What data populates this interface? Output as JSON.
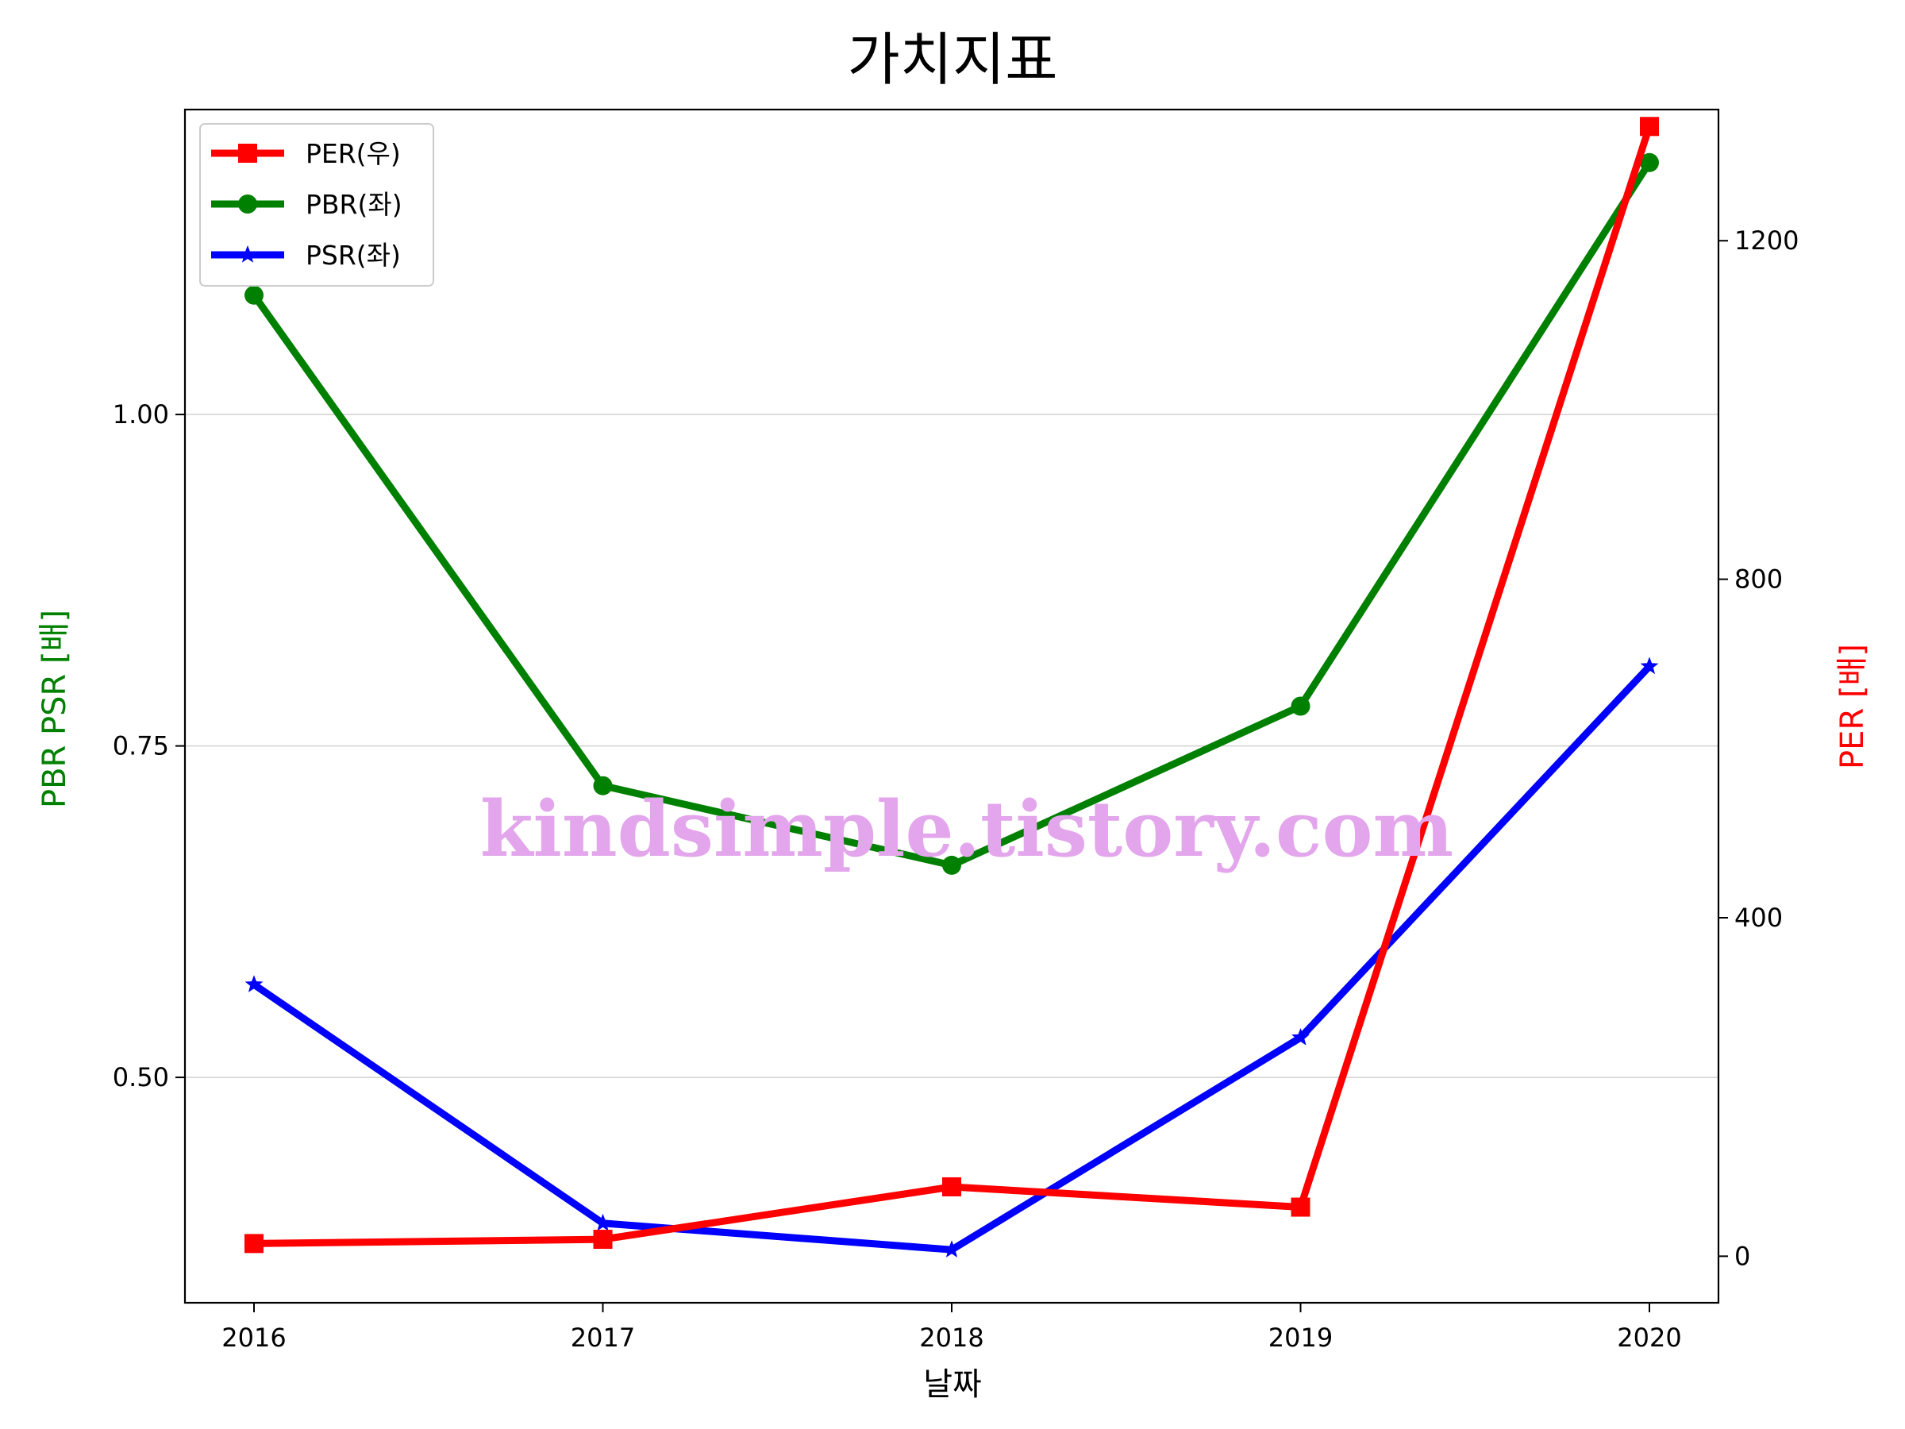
{
  "chart_data": {
    "type": "line",
    "title": "가치지표",
    "xlabel": "날짜",
    "ylabel_left": "PBR PSR [배]",
    "ylabel_right": "PER [배]",
    "categories": [
      "2016",
      "2017",
      "2018",
      "2019",
      "2020"
    ],
    "ylim_left": [
      0.33,
      1.23
    ],
    "yticks_left": [
      0.5,
      0.75,
      1.0
    ],
    "ytick_labels_left": [
      "0.50",
      "0.75",
      "1.00"
    ],
    "ylim_right": [
      -55,
      1355
    ],
    "yticks_right": [
      0,
      400,
      800,
      1200
    ],
    "ytick_labels_right": [
      "0",
      "400",
      "800",
      "1200"
    ],
    "grid": "horizontal",
    "legend_position": "top-left",
    "series": [
      {
        "name": "PER(우)",
        "axis": "right",
        "marker": "square",
        "color": "#ff0000",
        "values": [
          15,
          20,
          82,
          58,
          1335
        ]
      },
      {
        "name": "PBR(좌)",
        "axis": "left",
        "marker": "circle",
        "color": "#008000",
        "values": [
          1.09,
          0.72,
          0.66,
          0.78,
          1.19
        ]
      },
      {
        "name": "PSR(좌)",
        "axis": "left",
        "marker": "star",
        "color": "#0000ff",
        "values": [
          0.57,
          0.39,
          0.37,
          0.53,
          0.81
        ]
      }
    ],
    "watermark": "kindsimple.tistory.com"
  }
}
